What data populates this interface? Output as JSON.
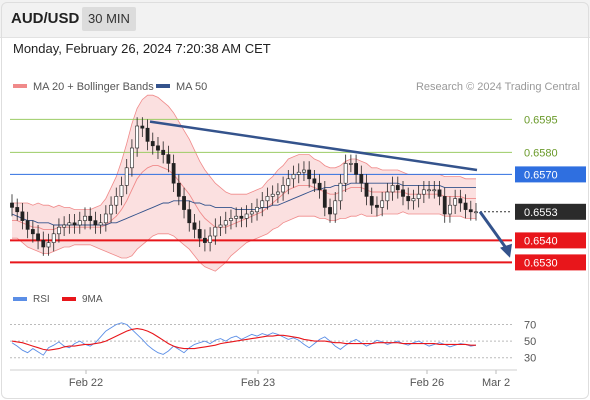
{
  "header": {
    "symbol": "AUD/USD",
    "timeframe": "30 MIN"
  },
  "datetime": "Monday, February 26, 2024 7:20:38 AM CET",
  "legend": {
    "bollinger_label": "MA 20 + Bollinger Bands",
    "ma50_label": "MA 50",
    "credit": "Research © 2024 Trading Central"
  },
  "rsi_legend": {
    "rsi_label": "RSI",
    "ma_label": "9MA"
  },
  "colors": {
    "bollinger": "#f08a8a",
    "band_fill": "#fbe0e0",
    "ma50": "#34538c",
    "resistance": "#9ccc65",
    "pivot": "#2f6fe0",
    "support": "#e8161b",
    "trendline": "#34538c",
    "rsi": "#5b8ee6",
    "rsi_ma": "#e8161b"
  },
  "chart_data": [
    {
      "type": "candlestick",
      "title": "AUD/USD 30 MIN",
      "ylim": [
        0.6522,
        0.6602
      ],
      "x_ticks": [
        "Feb 22",
        "Feb 23",
        "Feb 26",
        "Mar 2"
      ],
      "levels": [
        {
          "value": 0.6595,
          "label": "0.6595",
          "kind": "resistance"
        },
        {
          "value": 0.658,
          "label": "0.6580",
          "kind": "resistance"
        },
        {
          "value": 0.657,
          "label": "0.6570",
          "kind": "pivot"
        },
        {
          "value": 0.654,
          "label": "0.6540",
          "kind": "support"
        },
        {
          "value": 0.653,
          "label": "0.6530",
          "kind": "support"
        }
      ],
      "last_price": {
        "value": 0.6553,
        "label": "0.6553"
      },
      "trendline": [
        [
          0.0,
          0.6594
        ],
        [
          1.0,
          0.6572
        ]
      ],
      "projection": [
        [
          0.0,
          0.6553
        ],
        [
          1.0,
          0.6533
        ]
      ],
      "closes": [
        0.6555,
        0.6553,
        0.6549,
        0.6545,
        0.6543,
        0.654,
        0.6537,
        0.6539,
        0.6543,
        0.6546,
        0.6547,
        0.6548,
        0.6547,
        0.6549,
        0.6551,
        0.6549,
        0.6547,
        0.6548,
        0.6552,
        0.6556,
        0.656,
        0.6565,
        0.6573,
        0.6582,
        0.6592,
        0.6591,
        0.6585,
        0.6583,
        0.6581,
        0.6579,
        0.6575,
        0.6566,
        0.656,
        0.6554,
        0.6548,
        0.6545,
        0.6541,
        0.6539,
        0.6542,
        0.6546,
        0.6547,
        0.6549,
        0.655,
        0.6551,
        0.655,
        0.6552,
        0.6553,
        0.6555,
        0.6558,
        0.656,
        0.6561,
        0.6562,
        0.6565,
        0.6568,
        0.657,
        0.6571,
        0.6572,
        0.6568,
        0.6566,
        0.6563,
        0.6555,
        0.6552,
        0.6558,
        0.6566,
        0.6575,
        0.6575,
        0.657,
        0.6566,
        0.656,
        0.6556,
        0.6555,
        0.6558,
        0.6562,
        0.6565,
        0.6563,
        0.656,
        0.6558,
        0.6559,
        0.6561,
        0.6563,
        0.6563,
        0.6563,
        0.656,
        0.6552,
        0.6556,
        0.6559,
        0.6557,
        0.6554,
        0.6553,
        0.6553
      ],
      "bollinger_mid": [
        0.6549,
        0.6549,
        0.6548,
        0.6547,
        0.6546,
        0.6546,
        0.6545,
        0.6545,
        0.6545,
        0.6546,
        0.6546,
        0.6546,
        0.6546,
        0.6546,
        0.6546,
        0.6546,
        0.6546,
        0.6546,
        0.6547,
        0.6549,
        0.6551,
        0.6554,
        0.6558,
        0.6563,
        0.6568,
        0.6571,
        0.6573,
        0.6574,
        0.6574,
        0.6573,
        0.6572,
        0.657,
        0.6567,
        0.6564,
        0.6561,
        0.6557,
        0.6553,
        0.655,
        0.6548,
        0.6546,
        0.6546,
        0.6546,
        0.6547,
        0.6548,
        0.6549,
        0.655,
        0.6551,
        0.6552,
        0.6553,
        0.6555,
        0.6557,
        0.6559,
        0.6561,
        0.6563,
        0.6564,
        0.6565,
        0.6565,
        0.6565,
        0.6564,
        0.6563,
        0.6562,
        0.6561,
        0.6561,
        0.6562,
        0.6563,
        0.6564,
        0.6564,
        0.6564,
        0.6563,
        0.6562,
        0.6562,
        0.6562,
        0.6562,
        0.6562,
        0.6562,
        0.6562,
        0.6561,
        0.6561,
        0.6561,
        0.6561,
        0.6561,
        0.6561,
        0.6561,
        0.656,
        0.656,
        0.656,
        0.656,
        0.6559,
        0.6559,
        0.6559
      ],
      "bollinger_width": [
        0.0008,
        0.0008,
        0.0009,
        0.001,
        0.001,
        0.0011,
        0.0011,
        0.0011,
        0.001,
        0.001,
        0.0009,
        0.0009,
        0.0008,
        0.0008,
        0.0008,
        0.0008,
        0.0009,
        0.001,
        0.0012,
        0.0015,
        0.0018,
        0.0022,
        0.0026,
        0.003,
        0.0032,
        0.0033,
        0.0033,
        0.0032,
        0.0031,
        0.003,
        0.0029,
        0.0028,
        0.0027,
        0.0026,
        0.0025,
        0.0024,
        0.0023,
        0.0022,
        0.0021,
        0.002,
        0.0018,
        0.0016,
        0.0014,
        0.0013,
        0.0012,
        0.0011,
        0.0011,
        0.0011,
        0.0011,
        0.0012,
        0.0012,
        0.0013,
        0.0013,
        0.0014,
        0.0014,
        0.0014,
        0.0014,
        0.0014,
        0.0013,
        0.0013,
        0.0012,
        0.0012,
        0.0012,
        0.0012,
        0.0013,
        0.0013,
        0.0013,
        0.0012,
        0.0012,
        0.0011,
        0.0011,
        0.001,
        0.001,
        0.001,
        0.001,
        0.0009,
        0.0009,
        0.0009,
        0.0009,
        0.0009,
        0.0009,
        0.0009,
        0.0009,
        0.0009,
        0.0009,
        0.0009,
        0.0009,
        0.0009,
        0.0009,
        0.0009
      ],
      "ma50": [
        0.6552,
        0.6551,
        0.655,
        0.6549,
        0.6549,
        0.6548,
        0.6548,
        0.6548,
        0.6547,
        0.6547,
        0.6547,
        0.6547,
        0.6547,
        0.6547,
        0.6547,
        0.6547,
        0.6547,
        0.6547,
        0.6547,
        0.6548,
        0.6548,
        0.6549,
        0.655,
        0.6551,
        0.6552,
        0.6553,
        0.6554,
        0.6555,
        0.6556,
        0.6557,
        0.6557,
        0.6558,
        0.6558,
        0.6558,
        0.6558,
        0.6557,
        0.6557,
        0.6556,
        0.6556,
        0.6555,
        0.6555,
        0.6555,
        0.6555,
        0.6554,
        0.6554,
        0.6554,
        0.6554,
        0.6554,
        0.6555,
        0.6555,
        0.6556,
        0.6556,
        0.6557,
        0.6558,
        0.6559,
        0.656,
        0.6561,
        0.6562,
        0.6563,
        0.6563,
        0.6564,
        0.6564,
        0.6565,
        0.6565,
        0.6565,
        0.6566,
        0.6566,
        0.6566,
        0.6566,
        0.6566,
        0.6566,
        0.6566,
        0.6566,
        0.6566,
        0.6566,
        0.6565,
        0.6565,
        0.6565,
        0.6565,
        0.6565,
        0.6565,
        0.6565,
        0.6565,
        0.6564,
        0.6564,
        0.6564,
        0.6564,
        0.6564,
        0.6564,
        0.6564
      ]
    },
    {
      "type": "line",
      "title": "RSI",
      "ylim": [
        20,
        85
      ],
      "y_ticks": [
        "70",
        "50",
        "30"
      ],
      "series": [
        {
          "name": "RSI",
          "values": [
            48,
            44,
            39,
            36,
            41,
            37,
            33,
            42,
            45,
            49,
            44,
            42,
            47,
            50,
            46,
            44,
            48,
            55,
            62,
            66,
            70,
            72,
            70,
            64,
            58,
            52,
            45,
            40,
            36,
            34,
            38,
            44,
            40,
            36,
            42,
            46,
            48,
            50,
            47,
            51,
            53,
            50,
            54,
            56,
            52,
            55,
            58,
            56,
            59,
            57,
            60,
            58,
            55,
            52,
            54,
            51,
            46,
            42,
            47,
            52,
            55,
            50,
            44,
            40,
            45,
            49,
            52,
            48,
            44,
            47,
            51,
            49,
            46,
            48,
            50,
            47,
            45,
            48,
            50,
            47,
            44,
            46,
            48,
            46,
            43,
            45,
            47,
            46,
            44,
            45
          ]
        },
        {
          "name": "9MA",
          "values": [
            50,
            49,
            48,
            46,
            44,
            42,
            40,
            39,
            40,
            41,
            43,
            44,
            44,
            45,
            46,
            46,
            47,
            48,
            50,
            53,
            56,
            59,
            62,
            64,
            65,
            64,
            62,
            59,
            55,
            51,
            47,
            44,
            42,
            41,
            41,
            41,
            42,
            43,
            44,
            45,
            47,
            48,
            49,
            50,
            51,
            52,
            53,
            54,
            55,
            56,
            56,
            57,
            57,
            56,
            55,
            54,
            52,
            51,
            50,
            50,
            50,
            49,
            48,
            48,
            47,
            47,
            47,
            47,
            47,
            47,
            48,
            48,
            48,
            48,
            48,
            47,
            47,
            47,
            47,
            47,
            47,
            47,
            46,
            46,
            46,
            46,
            46,
            46,
            45,
            45
          ]
        }
      ]
    }
  ]
}
